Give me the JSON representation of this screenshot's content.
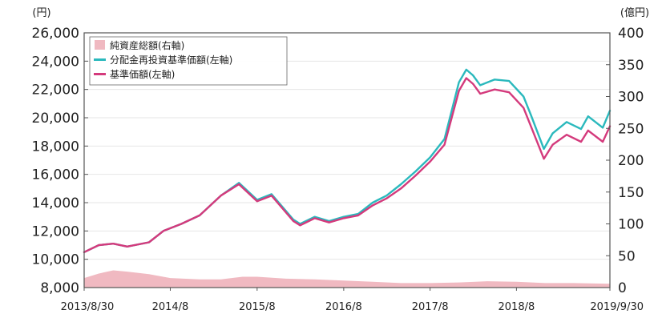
{
  "chart_data": {
    "type": "line",
    "left_axis": {
      "unit": "(円)",
      "range": [
        8000,
        26000
      ],
      "ticks": [
        "8,000",
        "10,000",
        "12,000",
        "14,000",
        "16,000",
        "18,000",
        "20,000",
        "22,000",
        "24,000",
        "26,000"
      ],
      "tick_values": [
        8000,
        10000,
        12000,
        14000,
        16000,
        18000,
        20000,
        22000,
        24000,
        26000
      ]
    },
    "right_axis": {
      "unit": "(億円)",
      "range": [
        0,
        400
      ],
      "ticks": [
        "0",
        "50",
        "100",
        "150",
        "200",
        "250",
        "300",
        "350",
        "400"
      ],
      "tick_values": [
        0,
        50,
        100,
        150,
        200,
        250,
        300,
        350,
        400
      ]
    },
    "x_axis": {
      "ticks": [
        "2013/8/30",
        "2014/8",
        "2015/8",
        "2016/8",
        "2017/8",
        "2018/8",
        "2019/9/30"
      ],
      "tick_dates": [
        "2013-08-30",
        "2014-08-29",
        "2015-08-31",
        "2016-08-31",
        "2017-08-31",
        "2018-08-31",
        "2019-09-30"
      ],
      "range": [
        "2013-08-30",
        "2019-09-30"
      ]
    },
    "legend": {
      "position": "top-left",
      "items": [
        "純資産総額(右軸)",
        "分配金再投資基準価額(左軸)",
        "基準価額(左軸)"
      ]
    },
    "colors": {
      "net_assets": "#f0b9c1",
      "reinvested": "#2bb9bd",
      "nav": "#d43a7c"
    },
    "series": [
      {
        "name": "純資産総額(右軸)",
        "kind": "area",
        "axis": "right",
        "x": [
          "2013-08-30",
          "2013-10-31",
          "2013-12-31",
          "2014-02-28",
          "2014-05-31",
          "2014-08-29",
          "2014-12-31",
          "2015-03-31",
          "2015-06-30",
          "2015-08-31",
          "2015-12-31",
          "2016-04-30",
          "2016-08-31",
          "2016-12-31",
          "2017-04-30",
          "2017-08-31",
          "2017-12-31",
          "2018-04-30",
          "2018-08-31",
          "2018-12-31",
          "2019-04-30",
          "2019-09-30"
        ],
        "values": [
          15,
          22,
          27,
          25,
          21,
          15,
          13,
          13,
          17,
          17,
          14,
          13,
          11,
          9,
          7,
          7,
          8,
          10,
          9,
          7,
          7,
          6
        ]
      },
      {
        "name": "分配金再投資基準価額(左軸)",
        "kind": "line",
        "axis": "left",
        "x": [
          "2013-08-30",
          "2013-10-31",
          "2013-12-31",
          "2014-02-28",
          "2014-05-31",
          "2014-07-31",
          "2014-10-15",
          "2014-12-31",
          "2015-03-31",
          "2015-06-15",
          "2015-08-31",
          "2015-10-31",
          "2016-01-31",
          "2016-02-29",
          "2016-04-30",
          "2016-06-30",
          "2016-08-31",
          "2016-10-31",
          "2016-12-31",
          "2017-02-28",
          "2017-04-30",
          "2017-06-30",
          "2017-08-31",
          "2017-10-31",
          "2017-12-31",
          "2018-01-31",
          "2018-02-28",
          "2018-03-31",
          "2018-05-31",
          "2018-07-31",
          "2018-09-30",
          "2018-10-31",
          "2018-12-25",
          "2019-01-31",
          "2019-03-31",
          "2019-05-31",
          "2019-06-30",
          "2019-08-31",
          "2019-09-30"
        ],
        "values": [
          10500,
          11000,
          11100,
          10900,
          11200,
          12000,
          12500,
          13100,
          14500,
          15400,
          14200,
          14600,
          12800,
          12500,
          13000,
          12700,
          13000,
          13200,
          14000,
          14500,
          15300,
          16200,
          17200,
          18500,
          22500,
          23400,
          23000,
          22300,
          22700,
          22600,
          21500,
          20200,
          17800,
          18900,
          19700,
          19200,
          20100,
          19300,
          20500
        ]
      },
      {
        "name": "基準価額(左軸)",
        "kind": "line",
        "axis": "left",
        "x": [
          "2013-08-30",
          "2013-10-31",
          "2013-12-31",
          "2014-02-28",
          "2014-05-31",
          "2014-07-31",
          "2014-10-15",
          "2014-12-31",
          "2015-03-31",
          "2015-06-15",
          "2015-08-31",
          "2015-10-31",
          "2016-01-31",
          "2016-02-29",
          "2016-04-30",
          "2016-06-30",
          "2016-08-31",
          "2016-10-31",
          "2016-12-31",
          "2017-02-28",
          "2017-04-30",
          "2017-06-30",
          "2017-08-31",
          "2017-10-31",
          "2017-12-31",
          "2018-01-31",
          "2018-02-28",
          "2018-03-31",
          "2018-05-31",
          "2018-07-31",
          "2018-09-30",
          "2018-10-31",
          "2018-12-25",
          "2019-01-31",
          "2019-03-31",
          "2019-05-31",
          "2019-06-30",
          "2019-08-31",
          "2019-09-30"
        ],
        "values": [
          10500,
          11000,
          11100,
          10900,
          11200,
          12000,
          12500,
          13100,
          14500,
          15300,
          14100,
          14500,
          12700,
          12400,
          12900,
          12600,
          12900,
          13100,
          13800,
          14300,
          15000,
          15900,
          16900,
          18100,
          21900,
          22800,
          22400,
          21700,
          22000,
          21800,
          20700,
          19400,
          17100,
          18100,
          18800,
          18300,
          19100,
          18300,
          19400
        ]
      }
    ]
  }
}
